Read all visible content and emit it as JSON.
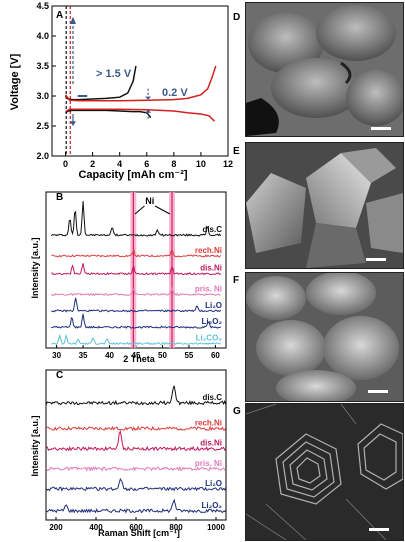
{
  "chart_data": [
    {
      "panel": "A",
      "type": "line",
      "xlabel": "Capacity [mAh cm⁻²]",
      "ylabel": "Voltage [V]",
      "xlim": [
        -1,
        12
      ],
      "ylim": [
        2.0,
        4.5
      ],
      "xticks": [
        "0",
        "2",
        "4",
        "6",
        "8",
        "10",
        "12"
      ],
      "yticks": [
        "2.0",
        "2.5",
        "3.0",
        "3.5",
        "4.0",
        "4.5"
      ],
      "annotations": [
        "> 1.5 V",
        "0.2 V"
      ],
      "series": [
        {
          "color": "#111111",
          "x": [
            0,
            0.2,
            0.5,
            1,
            2,
            3,
            4,
            5,
            5.5,
            6,
            6.3
          ],
          "y": [
            2.72,
            2.75,
            2.76,
            2.76,
            2.76,
            2.76,
            2.75,
            2.74,
            2.74,
            2.72,
            2.64
          ]
        },
        {
          "color": "#111111",
          "x": [
            0,
            0.2,
            0.5,
            1,
            2,
            3,
            4,
            4.6,
            5.0,
            5.2
          ],
          "y": [
            3.0,
            2.95,
            2.94,
            2.94,
            2.95,
            2.96,
            2.98,
            3.05,
            3.25,
            3.5
          ]
        },
        {
          "color": "#d42020",
          "x": [
            0,
            0.3,
            1,
            2,
            4,
            6,
            8,
            9,
            10,
            10.6,
            11.0
          ],
          "y": [
            2.74,
            2.78,
            2.78,
            2.78,
            2.78,
            2.77,
            2.75,
            2.72,
            2.7,
            2.67,
            2.58
          ]
        },
        {
          "color": "#d42020",
          "x": [
            0,
            0.3,
            1,
            2,
            4,
            6,
            8,
            9,
            10,
            10.5,
            10.8,
            11.1
          ],
          "y": [
            3.02,
            2.93,
            2.92,
            2.92,
            2.92,
            2.93,
            2.94,
            2.96,
            3.02,
            3.12,
            3.3,
            3.5
          ]
        }
      ]
    },
    {
      "panel": "B",
      "type": "line",
      "xlabel": "2 Theta",
      "ylabel": "Intensity [a.u.]",
      "xlim": [
        28,
        62
      ],
      "xticks": [
        "30",
        "35",
        "40",
        "45",
        "50",
        "55",
        "60"
      ],
      "peak_label": "Ni",
      "series": [
        {
          "name": "dis.C",
          "color": "#111111",
          "offset": 7.6,
          "peaks": [
            [
              32.5,
              1.2
            ],
            [
              33.5,
              1.8
            ],
            [
              35.0,
              2.3
            ],
            [
              40.5,
              0.6
            ],
            [
              49.0,
              0.4
            ],
            [
              58.5,
              0.6
            ]
          ]
        },
        {
          "name": "rech.Ni",
          "color": "#e03c3c",
          "offset": 6.2,
          "peaks": [
            [
              44.5,
              0.4
            ],
            [
              51.8,
              0.4
            ]
          ]
        },
        {
          "name": "dis.Ni",
          "color": "#c2185b",
          "offset": 5.0,
          "peaks": [
            [
              33.0,
              0.6
            ],
            [
              35.0,
              0.7
            ],
            [
              44.5,
              0.5
            ],
            [
              51.8,
              0.5
            ]
          ]
        },
        {
          "name": "pris. Ni",
          "color": "#e07ab8",
          "offset": 3.6,
          "peaks": [
            [
              44.5,
              0.4
            ],
            [
              51.8,
              0.4
            ]
          ]
        },
        {
          "name": "Li₂O",
          "color": "#1f2f7a",
          "offset": 2.5,
          "peaks": [
            [
              33.6,
              0.9
            ],
            [
              56.5,
              0.3
            ]
          ]
        },
        {
          "name": "Li₂O₂",
          "color": "#1f2f7a",
          "offset": 1.4,
          "peaks": [
            [
              32.9,
              0.7
            ],
            [
              35.0,
              0.9
            ],
            [
              58.7,
              0.4
            ]
          ]
        },
        {
          "name": "Li₂CO₃",
          "color": "#5fc2d8",
          "offset": 0.3,
          "peaks": [
            [
              30.6,
              0.6
            ],
            [
              31.8,
              0.5
            ],
            [
              34.1,
              0.3
            ],
            [
              36.9,
              0.4
            ],
            [
              39.5,
              0.3
            ]
          ]
        }
      ]
    },
    {
      "panel": "C",
      "type": "line",
      "xlabel": "Raman Shift [cm⁻¹]",
      "ylabel": "Intensity [a.u.]",
      "xlim": [
        150,
        1050
      ],
      "xticks": [
        "200",
        "400",
        "600",
        "800",
        "1000"
      ],
      "series": [
        {
          "name": "dis.C",
          "color": "#111111",
          "offset": 6.4,
          "peaks": [
            [
              790,
              1.0
            ]
          ]
        },
        {
          "name": "rech.Ni",
          "color": "#e03c3c",
          "offset": 5.0,
          "peaks": []
        },
        {
          "name": "dis.Ni",
          "color": "#c2185b",
          "offset": 3.9,
          "peaks": [
            [
              520,
              0.9
            ]
          ]
        },
        {
          "name": "pris. Ni",
          "color": "#e07ab8",
          "offset": 2.8,
          "peaks": []
        },
        {
          "name": "Li₂O",
          "color": "#1f2f7a",
          "offset": 1.7,
          "peaks": [
            [
              523,
              0.6
            ]
          ]
        },
        {
          "name": "Li₂O₂",
          "color": "#1f2f7a",
          "offset": 0.5,
          "peaks": [
            [
              250,
              0.3
            ],
            [
              790,
              0.6
            ]
          ]
        }
      ]
    }
  ],
  "sem_panels": [
    {
      "label": "D"
    },
    {
      "label": "E"
    },
    {
      "label": "F"
    },
    {
      "label": "G"
    }
  ]
}
